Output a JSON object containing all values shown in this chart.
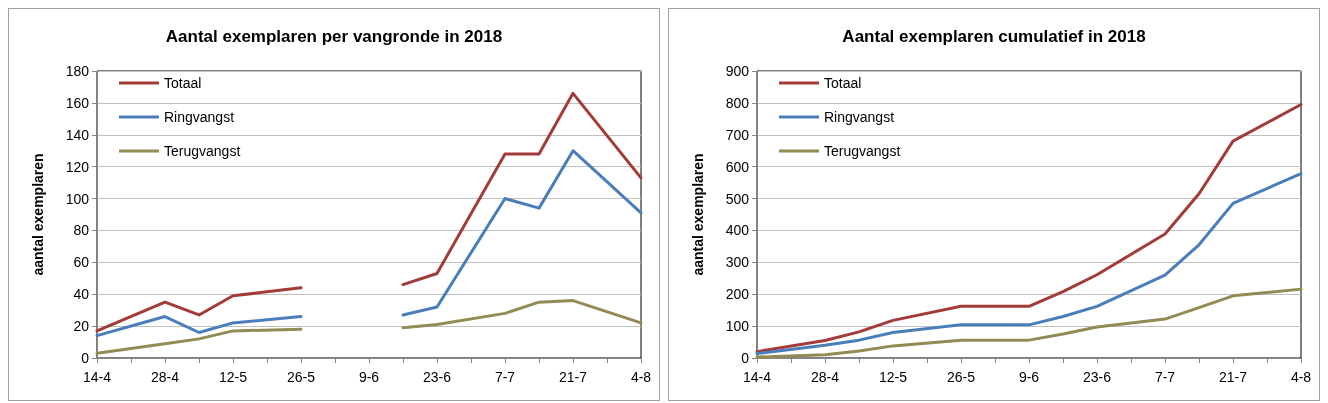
{
  "chart_data": [
    {
      "type": "line",
      "title": "Aantal exemplaren per vangronde in 2018",
      "ylabel": "aantal exemplaren",
      "x": [
        "--04-14",
        "--04-28",
        "--05-05",
        "--05-12",
        "--05-26",
        "--06-09",
        "--06-16",
        "--06-23",
        "--07-07",
        "--07-14",
        "--07-21",
        "--08-04"
      ],
      "series": [
        {
          "name": "Totaal",
          "color": "#a33b39",
          "values": [
            17,
            35,
            27,
            39,
            44,
            null,
            46,
            53,
            128,
            128,
            166,
            113
          ]
        },
        {
          "name": "Ringvangst",
          "color": "#4a7ebb",
          "values": [
            14,
            26,
            16,
            22,
            26,
            null,
            27,
            32,
            100,
            94,
            130,
            91
          ]
        },
        {
          "name": "Terugvangst",
          "color": "#948a54",
          "values": [
            3,
            9,
            12,
            17,
            18,
            null,
            19,
            21,
            28,
            35,
            36,
            22
          ]
        }
      ],
      "xlim": [
        "--04-14",
        "--08-04"
      ],
      "xticks": [
        {
          "value": "--04-14",
          "label": "14-4"
        },
        {
          "value": "--04-21",
          "label": null
        },
        {
          "value": "--04-28",
          "label": "28-4"
        },
        {
          "value": "--05-05",
          "label": null
        },
        {
          "value": "--05-12",
          "label": "12-5"
        },
        {
          "value": "--05-19",
          "label": null
        },
        {
          "value": "--05-26",
          "label": "26-5"
        },
        {
          "value": "--06-02",
          "label": null
        },
        {
          "value": "--06-09",
          "label": "9-6"
        },
        {
          "value": "--06-16",
          "label": null
        },
        {
          "value": "--06-23",
          "label": "23-6"
        },
        {
          "value": "--06-30",
          "label": null
        },
        {
          "value": "--07-07",
          "label": "7-7"
        },
        {
          "value": "--07-14",
          "label": null
        },
        {
          "value": "--07-21",
          "label": "21-7"
        },
        {
          "value": "--07-28",
          "label": null
        },
        {
          "value": "--08-04",
          "label": "4-8"
        }
      ],
      "ylim": [
        0,
        180
      ],
      "yticks": [
        0,
        20,
        40,
        60,
        80,
        100,
        120,
        140,
        160,
        180
      ],
      "grid": "y",
      "legend": "top left",
      "marker": "none",
      "line_style": "solid"
    },
    {
      "type": "line",
      "title": "Aantal exemplaren cumulatief in 2018",
      "ylabel": "aantal exemplaren",
      "x": [
        "--04-14",
        "--04-28",
        "--05-05",
        "--05-12",
        "--05-26",
        "--06-09",
        "--06-16",
        "--06-23",
        "--07-07",
        "--07-14",
        "--07-21",
        "--08-04"
      ],
      "series": [
        {
          "name": "Totaal",
          "color": "#a33b39",
          "values": [
            20,
            55,
            82,
            118,
            162,
            162,
            208,
            261,
            389,
            515,
            680,
            795
          ]
        },
        {
          "name": "Ringvangst",
          "color": "#4a7ebb",
          "values": [
            14,
            40,
            56,
            80,
            104,
            104,
            130,
            162,
            260,
            355,
            485,
            578
          ]
        },
        {
          "name": "Terugvangst",
          "color": "#948a54",
          "values": [
            3,
            10,
            22,
            38,
            56,
            56,
            75,
            97,
            122,
            158,
            195,
            216
          ]
        }
      ],
      "xlim": [
        "--04-14",
        "--08-04"
      ],
      "xticks": [
        {
          "value": "--04-14",
          "label": "14-4"
        },
        {
          "value": "--04-21",
          "label": null
        },
        {
          "value": "--04-28",
          "label": "28-4"
        },
        {
          "value": "--05-05",
          "label": null
        },
        {
          "value": "--05-12",
          "label": "12-5"
        },
        {
          "value": "--05-19",
          "label": null
        },
        {
          "value": "--05-26",
          "label": "26-5"
        },
        {
          "value": "--06-02",
          "label": null
        },
        {
          "value": "--06-09",
          "label": "9-6"
        },
        {
          "value": "--06-16",
          "label": null
        },
        {
          "value": "--06-23",
          "label": "23-6"
        },
        {
          "value": "--06-30",
          "label": null
        },
        {
          "value": "--07-07",
          "label": "7-7"
        },
        {
          "value": "--07-14",
          "label": null
        },
        {
          "value": "--07-21",
          "label": "21-7"
        },
        {
          "value": "--07-28",
          "label": null
        },
        {
          "value": "--08-04",
          "label": "4-8"
        }
      ],
      "ylim": [
        0,
        900
      ],
      "yticks": [
        0,
        100,
        200,
        300,
        400,
        500,
        600,
        700,
        800,
        900
      ],
      "grid": "y",
      "legend": "top left",
      "marker": "none",
      "line_style": "solid"
    }
  ]
}
